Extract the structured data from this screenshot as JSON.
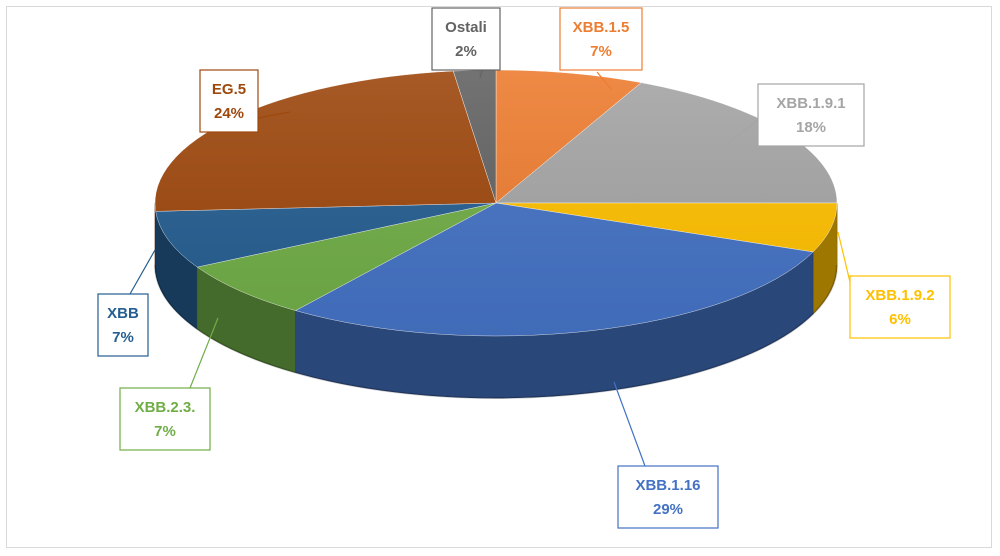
{
  "chart_data": {
    "type": "pie",
    "style": "3d",
    "title": "",
    "legend": "none",
    "slices": [
      {
        "label": "XBB.1.5",
        "value": 7,
        "display": "7%",
        "color": "#ED7D31",
        "label_color": "#ED7D31"
      },
      {
        "label": "XBB.1.9.1",
        "value": 18,
        "display": "18%",
        "color": "#A5A5A5",
        "label_color": "#A5A5A5"
      },
      {
        "label": "XBB.1.9.2",
        "value": 6,
        "display": "6%",
        "color": "#FFC000",
        "label_color": "#FFC000"
      },
      {
        "label": "XBB.1.16",
        "value": 29,
        "display": "29%",
        "color": "#4472C4",
        "label_color": "#4472C4"
      },
      {
        "label": "XBB.2.3.",
        "value": 7,
        "display": "7%",
        "color": "#70AD47",
        "label_color": "#70AD47"
      },
      {
        "label": "XBB",
        "value": 7,
        "display": "7%",
        "color": "#255E91",
        "label_color": "#255E91"
      },
      {
        "label": "EG.5",
        "value": 24,
        "display": "24%",
        "color": "#9E480E",
        "label_color": "#9E480E"
      },
      {
        "label": "Ostali",
        "value": 2,
        "display": "2%",
        "color": "#636363",
        "label_color": "#636363"
      }
    ]
  }
}
